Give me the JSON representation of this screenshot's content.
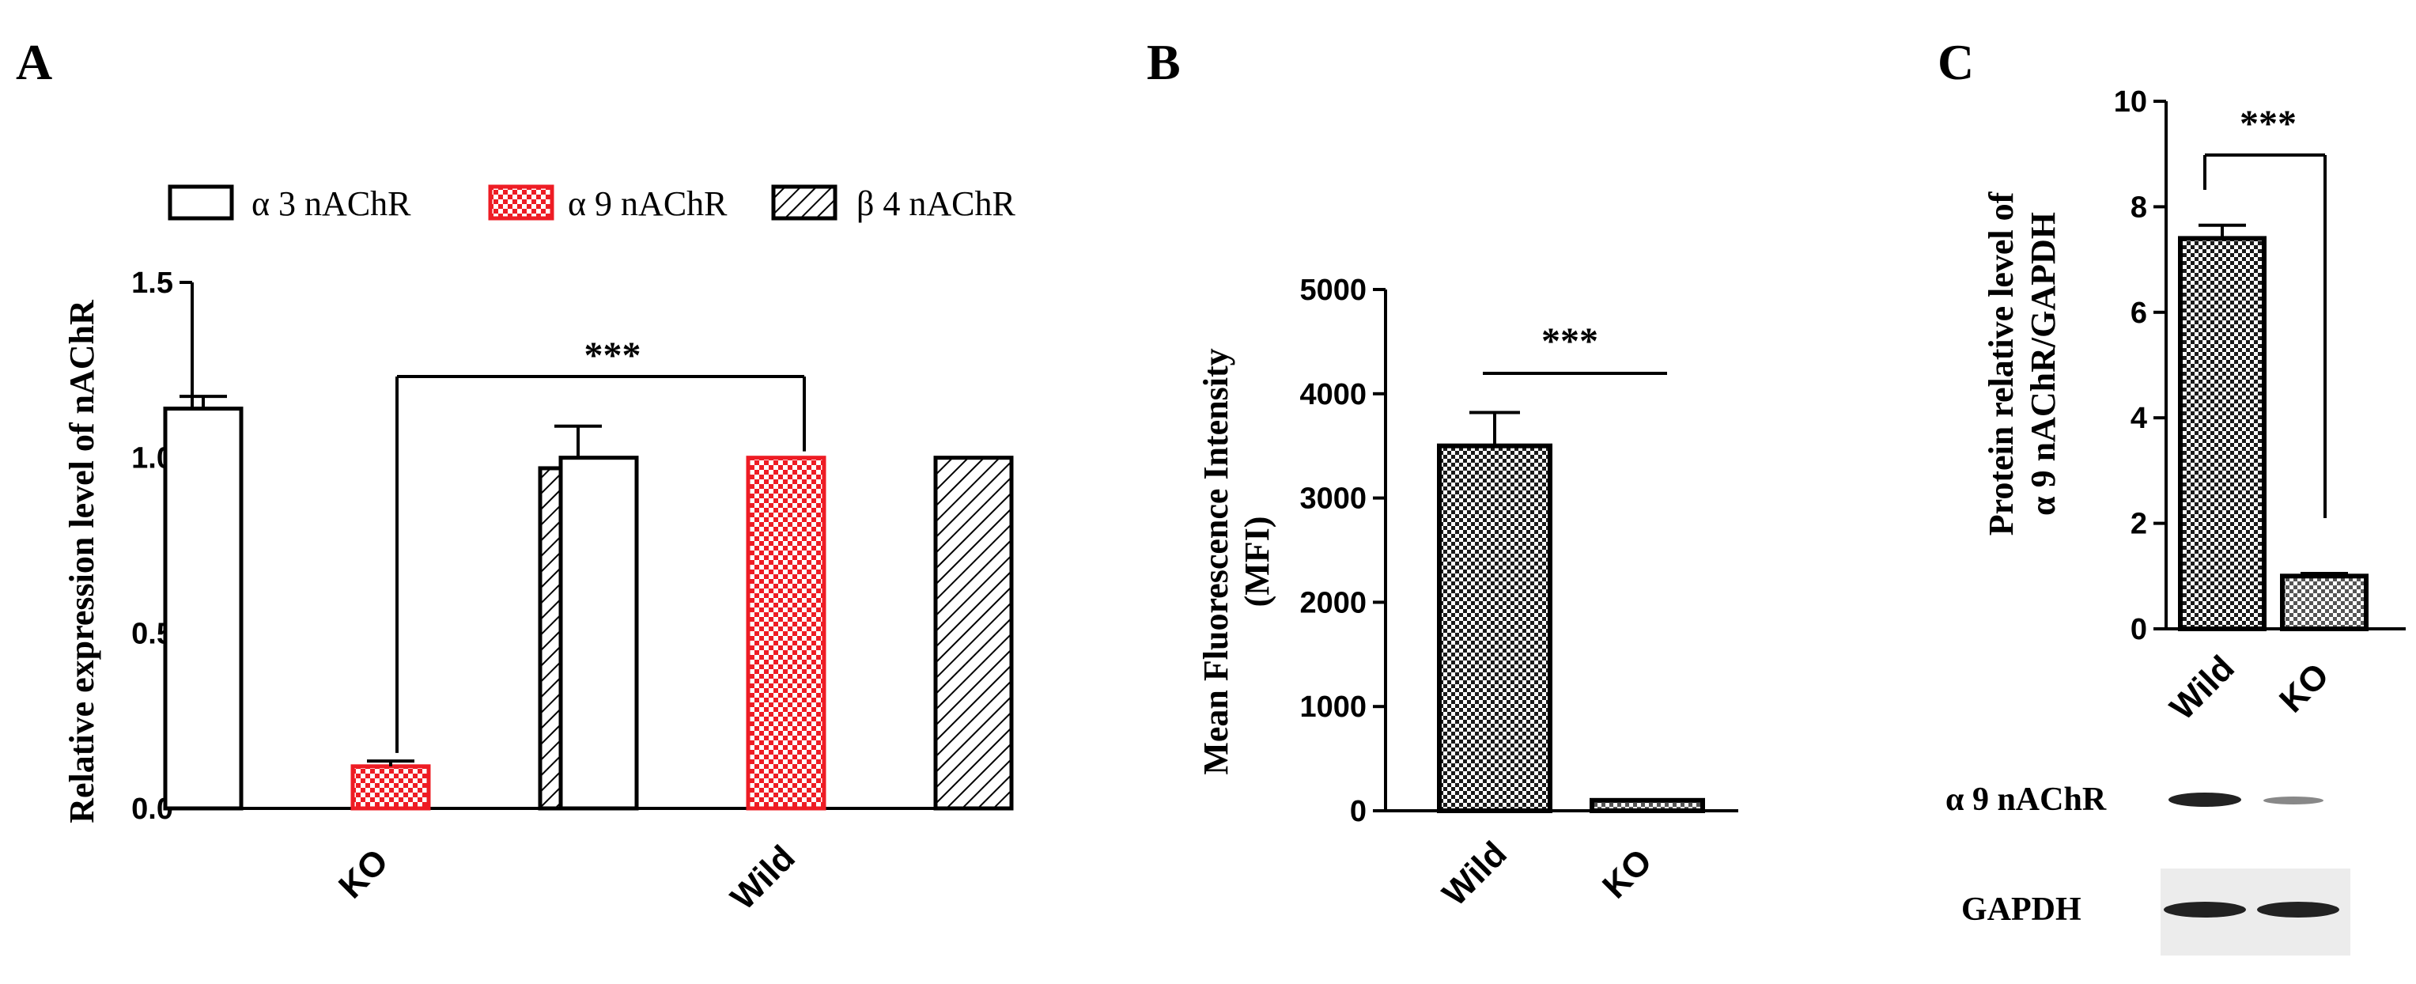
{
  "panels": {
    "a": "A",
    "b": "B",
    "c": "C"
  },
  "colors": {
    "alpha9": "#ee1c24",
    "black": "#000000",
    "white": "#ffffff"
  },
  "chart_data": [
    {
      "id": "A",
      "type": "bar",
      "ylabel": "Relative expression level of nAChR",
      "ylim": [
        0,
        1.5
      ],
      "yticks": [
        "0.0",
        "0.5",
        "1.0",
        "1.5"
      ],
      "categories": [
        "KO",
        "Wild"
      ],
      "series": [
        {
          "name": "α 3 nAChR",
          "pattern": "open",
          "values": [
            1.14,
            1.0
          ],
          "errors": [
            0.035,
            0
          ]
        },
        {
          "name": "α 9 nAChR",
          "pattern": "checker-red",
          "values": [
            0.12,
            1.0
          ],
          "errors": [
            0.015,
            0
          ]
        },
        {
          "name": "β 4 nAChR",
          "pattern": "hatch",
          "values": [
            0.97,
            1.0
          ],
          "errors": [
            0.12,
            0
          ]
        }
      ],
      "significance": "***"
    },
    {
      "id": "B",
      "type": "bar",
      "ylabel": "Mean Fluorescence Intensity",
      "ylabel2": "(MFI)",
      "ylim": [
        0,
        5000
      ],
      "yticks": [
        "0",
        "1000",
        "2000",
        "3000",
        "4000",
        "5000"
      ],
      "categories": [
        "Wild",
        "KO"
      ],
      "values": [
        3500,
        100
      ],
      "errors": [
        320,
        0
      ],
      "significance": "***"
    },
    {
      "id": "C",
      "type": "bar",
      "ylabel": "Protein relative level of",
      "ylabel2": "α 9 nAChR/GAPDH",
      "ylim": [
        0,
        10
      ],
      "yticks": [
        "0",
        "2",
        "4",
        "6",
        "8",
        "10"
      ],
      "categories": [
        "Wild",
        "KO"
      ],
      "values": [
        7.4,
        1.0
      ],
      "errors": [
        0.25,
        0.05
      ],
      "significance": "***"
    }
  ],
  "blot": {
    "rows": [
      "α 9 nAChR",
      "GAPDH"
    ]
  }
}
